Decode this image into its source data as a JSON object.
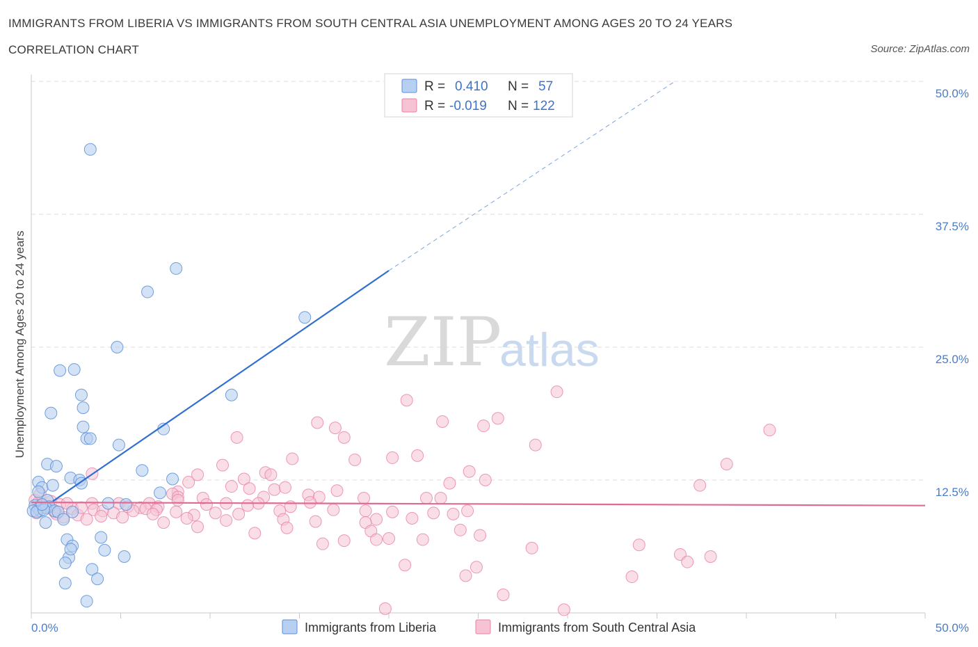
{
  "header": {
    "title": "IMMIGRANTS FROM LIBERIA VS IMMIGRANTS FROM SOUTH CENTRAL ASIA UNEMPLOYMENT AMONG AGES 20 TO 24 YEARS",
    "subtitle": "CORRELATION CHART",
    "source": "Source: ZipAtlas.com"
  },
  "watermark": {
    "zip": "ZIP",
    "atlas": "atlas"
  },
  "legend": {
    "r_label": "R =",
    "n_label": "N =",
    "series_a": {
      "r": "0.410",
      "n": "57"
    },
    "series_b": {
      "r": "-0.019",
      "n": "122"
    }
  },
  "chart_data": {
    "type": "scatter",
    "title": "IMMIGRANTS FROM LIBERIA VS IMMIGRANTS FROM SOUTH CENTRAL ASIA UNEMPLOYMENT AMONG AGES 20 TO 24 YEARS",
    "xlabel": "",
    "ylabel": "Unemployment Among Ages 20 to 24 years",
    "xlim": [
      0,
      50
    ],
    "ylim": [
      0,
      50
    ],
    "x_tick_labels": [
      "0.0%",
      "50.0%"
    ],
    "y_tick_labels": [
      "12.5%",
      "25.0%",
      "37.5%",
      "50.0%"
    ],
    "y_ticks": [
      12.5,
      25.0,
      37.5,
      50.0
    ],
    "grid": true,
    "colors": {
      "series_a": "#5b8fd6",
      "series_a_fill": "#b7cff0",
      "series_b": "#e880a6",
      "series_b_fill": "#f6c3d4"
    },
    "series": [
      {
        "name": "Immigrants from Liberia",
        "r": 0.41,
        "n": 57,
        "trend": {
          "x0": 1.2,
          "y0": 10.5,
          "x1": 20.0,
          "y1": 32.2,
          "dash_to_x": 36.0,
          "dash_to_y": 50.0
        },
        "points": [
          [
            3.3,
            43.6
          ],
          [
            8.1,
            32.4
          ],
          [
            6.5,
            30.2
          ],
          [
            15.3,
            27.8
          ],
          [
            4.8,
            25.0
          ],
          [
            1.6,
            22.8
          ],
          [
            2.4,
            22.9
          ],
          [
            2.8,
            20.5
          ],
          [
            11.2,
            20.5
          ],
          [
            2.9,
            19.3
          ],
          [
            1.1,
            18.8
          ],
          [
            2.9,
            17.5
          ],
          [
            7.4,
            17.3
          ],
          [
            3.1,
            16.4
          ],
          [
            3.3,
            16.4
          ],
          [
            4.9,
            15.8
          ],
          [
            0.9,
            14.0
          ],
          [
            1.4,
            13.8
          ],
          [
            6.2,
            13.4
          ],
          [
            2.2,
            12.7
          ],
          [
            2.7,
            12.5
          ],
          [
            7.9,
            12.6
          ],
          [
            2.8,
            12.2
          ],
          [
            0.4,
            12.3
          ],
          [
            0.6,
            11.8
          ],
          [
            1.2,
            12.0
          ],
          [
            7.2,
            11.3
          ],
          [
            0.4,
            11.4
          ],
          [
            0.9,
            10.6
          ],
          [
            4.3,
            10.3
          ],
          [
            5.3,
            10.2
          ],
          [
            1.0,
            10.0
          ],
          [
            0.2,
            10.1
          ],
          [
            0.4,
            9.8
          ],
          [
            0.5,
            9.6
          ],
          [
            0.8,
            9.9
          ],
          [
            1.3,
            9.6
          ],
          [
            1.5,
            9.5
          ],
          [
            2.3,
            9.5
          ],
          [
            0.1,
            9.6
          ],
          [
            0.3,
            9.5
          ],
          [
            0.7,
            9.7
          ],
          [
            1.8,
            8.8
          ],
          [
            0.8,
            8.5
          ],
          [
            3.9,
            7.1
          ],
          [
            2.0,
            6.9
          ],
          [
            2.3,
            6.3
          ],
          [
            4.1,
            5.9
          ],
          [
            2.1,
            5.2
          ],
          [
            5.2,
            5.3
          ],
          [
            1.9,
            4.7
          ],
          [
            2.2,
            6.0
          ],
          [
            3.4,
            4.1
          ],
          [
            1.9,
            2.8
          ],
          [
            3.7,
            3.2
          ],
          [
            3.1,
            1.1
          ],
          [
            0.6,
            10.2
          ]
        ]
      },
      {
        "name": "Immigrants from South Central Asia",
        "r": -0.019,
        "n": 122,
        "trend": {
          "x0": 0.0,
          "y0": 10.4,
          "x1": 50.0,
          "y1": 10.1
        },
        "points": [
          [
            29.4,
            20.8
          ],
          [
            21.0,
            20.0
          ],
          [
            41.3,
            17.2
          ],
          [
            26.1,
            18.3
          ],
          [
            23.0,
            18.0
          ],
          [
            16.0,
            17.9
          ],
          [
            25.3,
            17.6
          ],
          [
            17.0,
            17.4
          ],
          [
            11.5,
            16.5
          ],
          [
            17.5,
            16.5
          ],
          [
            28.2,
            15.8
          ],
          [
            21.6,
            14.8
          ],
          [
            20.2,
            14.6
          ],
          [
            14.6,
            14.5
          ],
          [
            18.1,
            14.4
          ],
          [
            38.9,
            14.0
          ],
          [
            10.7,
            13.9
          ],
          [
            13.1,
            13.2
          ],
          [
            13.4,
            13.0
          ],
          [
            24.5,
            13.3
          ],
          [
            3.4,
            13.1
          ],
          [
            9.3,
            13.0
          ],
          [
            11.9,
            12.6
          ],
          [
            25.4,
            12.5
          ],
          [
            23.4,
            12.2
          ],
          [
            8.8,
            12.3
          ],
          [
            37.4,
            12.0
          ],
          [
            11.2,
            11.9
          ],
          [
            12.2,
            11.7
          ],
          [
            13.6,
            11.6
          ],
          [
            17.1,
            11.5
          ],
          [
            14.2,
            11.8
          ],
          [
            15.5,
            11.1
          ],
          [
            8.2,
            11.4
          ],
          [
            7.9,
            11.2
          ],
          [
            8.2,
            10.9
          ],
          [
            9.6,
            10.8
          ],
          [
            13.0,
            10.9
          ],
          [
            18.6,
            10.8
          ],
          [
            22.1,
            10.8
          ],
          [
            22.9,
            10.8
          ],
          [
            16.1,
            10.9
          ],
          [
            8.2,
            10.6
          ],
          [
            9.8,
            10.2
          ],
          [
            12.7,
            10.3
          ],
          [
            15.6,
            10.4
          ],
          [
            3.4,
            10.3
          ],
          [
            4.9,
            10.3
          ],
          [
            6.6,
            10.3
          ],
          [
            7.1,
            10.0
          ],
          [
            10.9,
            10.3
          ],
          [
            12.1,
            10.1
          ],
          [
            14.5,
            10.0
          ],
          [
            5.4,
            10.0
          ],
          [
            6.1,
            9.9
          ],
          [
            2.3,
            9.8
          ],
          [
            3.5,
            9.7
          ],
          [
            4.0,
            9.6
          ],
          [
            4.6,
            9.4
          ],
          [
            5.7,
            9.6
          ],
          [
            6.4,
            9.8
          ],
          [
            7.0,
            9.7
          ],
          [
            8.1,
            9.5
          ],
          [
            9.1,
            9.2
          ],
          [
            10.3,
            9.4
          ],
          [
            11.6,
            9.3
          ],
          [
            13.9,
            9.6
          ],
          [
            16.9,
            9.7
          ],
          [
            18.7,
            9.6
          ],
          [
            20.2,
            9.5
          ],
          [
            22.5,
            9.4
          ],
          [
            23.6,
            9.3
          ],
          [
            24.4,
            9.6
          ],
          [
            1.3,
            9.5
          ],
          [
            2.6,
            9.2
          ],
          [
            3.9,
            9.1
          ],
          [
            5.1,
            9.0
          ],
          [
            6.8,
            9.3
          ],
          [
            1.8,
            9.0
          ],
          [
            3.1,
            8.8
          ],
          [
            7.4,
            8.5
          ],
          [
            8.7,
            8.9
          ],
          [
            10.9,
            8.7
          ],
          [
            14.1,
            8.8
          ],
          [
            15.9,
            8.6
          ],
          [
            19.3,
            8.8
          ],
          [
            21.3,
            8.9
          ],
          [
            18.7,
            8.5
          ],
          [
            9.3,
            8.1
          ],
          [
            14.3,
            8.0
          ],
          [
            19.0,
            7.7
          ],
          [
            24.0,
            7.8
          ],
          [
            12.5,
            7.5
          ],
          [
            17.5,
            6.8
          ],
          [
            19.3,
            6.9
          ],
          [
            20.0,
            7.0
          ],
          [
            21.9,
            6.9
          ],
          [
            25.1,
            7.3
          ],
          [
            16.3,
            6.5
          ],
          [
            28.0,
            6.1
          ],
          [
            34.0,
            6.4
          ],
          [
            36.3,
            5.5
          ],
          [
            36.7,
            4.8
          ],
          [
            38.0,
            5.3
          ],
          [
            20.9,
            4.5
          ],
          [
            24.9,
            4.3
          ],
          [
            24.3,
            3.5
          ],
          [
            33.6,
            3.4
          ],
          [
            26.4,
            1.7
          ],
          [
            29.8,
            0.3
          ],
          [
            19.8,
            0.4
          ],
          [
            0.2,
            10.6
          ],
          [
            0.4,
            10.4
          ],
          [
            0.6,
            10.1
          ],
          [
            0.9,
            9.9
          ],
          [
            1.1,
            10.5
          ],
          [
            0.3,
            9.4
          ],
          [
            1.6,
            10.2
          ],
          [
            2.0,
            10.3
          ],
          [
            0.5,
            11.2
          ],
          [
            1.4,
            9.3
          ],
          [
            2.8,
            9.9
          ]
        ]
      }
    ]
  },
  "bottom_legend": {
    "series_a_label": "Immigrants from Liberia",
    "series_b_label": "Immigrants from South Central Asia"
  }
}
